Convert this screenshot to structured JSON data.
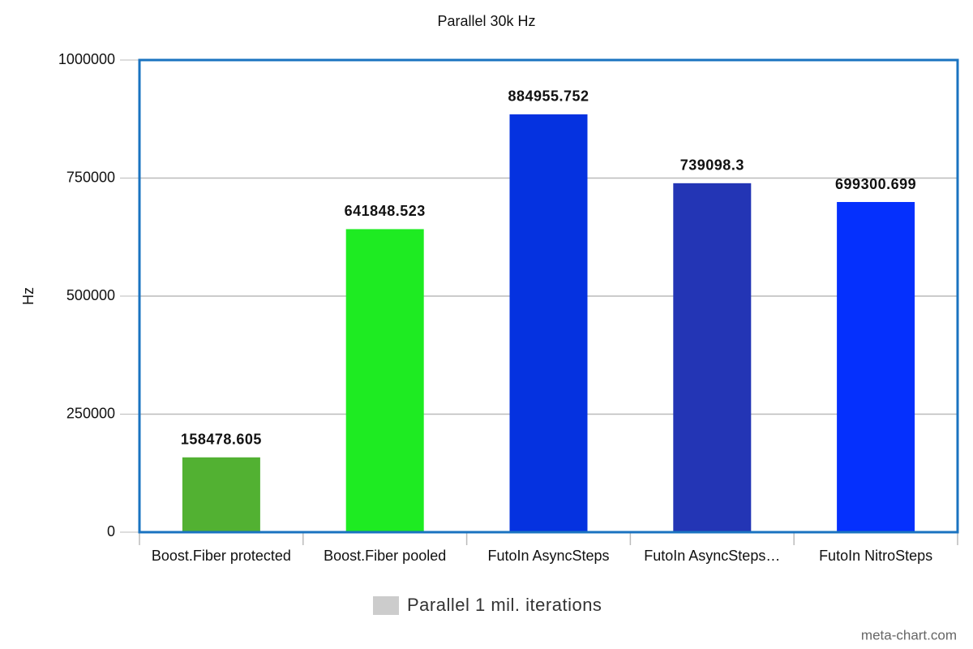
{
  "chart_data": {
    "type": "bar",
    "title": "Parallel 30k Hz",
    "y_label": "Hz",
    "categories": [
      "Boost.Fiber protected",
      "Boost.Fiber pooled",
      "FutoIn AsyncSteps",
      "FutoIn AsyncSteps…",
      "FutoIn NitroSteps"
    ],
    "series": [
      {
        "name": "Parallel 1 mil. iterations",
        "color": "#cccccc",
        "values": [
          158478.605,
          641848.523,
          884955.752,
          739098.3,
          699300.699
        ],
        "bar_colors": [
          "#52b132",
          "#1eeb22",
          "#0532e0",
          "#2335b5",
          "#0530fd"
        ]
      }
    ],
    "ylim": [
      0,
      1000000
    ],
    "yticks": [
      0,
      250000,
      500000,
      750000,
      1000000
    ],
    "grid": true,
    "legend": "bottom",
    "watermark": "meta-chart.com"
  }
}
